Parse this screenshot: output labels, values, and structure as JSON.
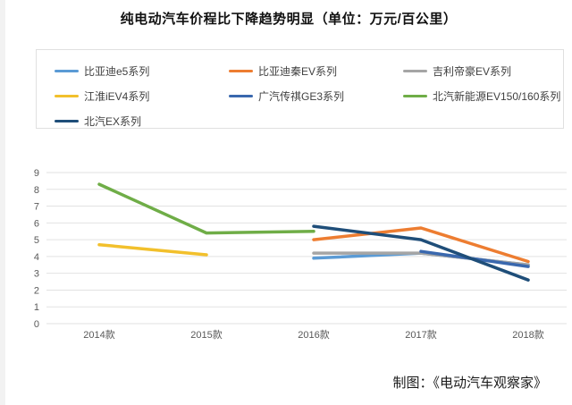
{
  "page": {
    "title": "纯电动汽车价程比下降趋势明显（单位：万元/百公里）",
    "credit": "制图：《电动汽车观察家》"
  },
  "colors": {
    "grid": "#e2e2e2",
    "axis_text": "#595959",
    "title_text": "#111111"
  },
  "chart_data": {
    "type": "line",
    "title": "纯电动汽车价程比下降趋势明显（单位：万元/百公里）",
    "xlabel": "",
    "ylabel": "",
    "categories": [
      "2014款",
      "2015款",
      "2016款",
      "2017款",
      "2018款"
    ],
    "series": [
      {
        "name": "比亚迪e5系列",
        "color": "#5B9BD5",
        "values": [
          null,
          null,
          3.9,
          4.2,
          3.5
        ]
      },
      {
        "name": "比亚迪秦EV系列",
        "color": "#ED7D31",
        "values": [
          null,
          null,
          5.0,
          5.7,
          3.7
        ]
      },
      {
        "name": "吉利帝豪EV系列",
        "color": "#A5A5A5",
        "values": [
          null,
          null,
          4.2,
          4.2,
          3.5
        ]
      },
      {
        "name": "江淮iEV4系列",
        "color": "#F2C02C",
        "values": [
          4.7,
          4.1,
          null,
          null,
          null
        ]
      },
      {
        "name": "广汽传祺GE3系列",
        "color": "#3A68AE",
        "values": [
          null,
          null,
          null,
          4.3,
          3.4
        ]
      },
      {
        "name": "北汽新能源EV150/160系列",
        "color": "#6FAD47",
        "values": [
          8.3,
          5.4,
          5.5,
          null,
          null
        ]
      },
      {
        "name": "北汽EX系列",
        "color": "#1F4E79",
        "values": [
          null,
          null,
          5.8,
          5.0,
          2.6
        ]
      }
    ],
    "ylim": [
      0,
      9
    ],
    "yticks": [
      0,
      1,
      2,
      3,
      4,
      5,
      6,
      7,
      8,
      9
    ],
    "grid": true,
    "legend_position": "top"
  }
}
